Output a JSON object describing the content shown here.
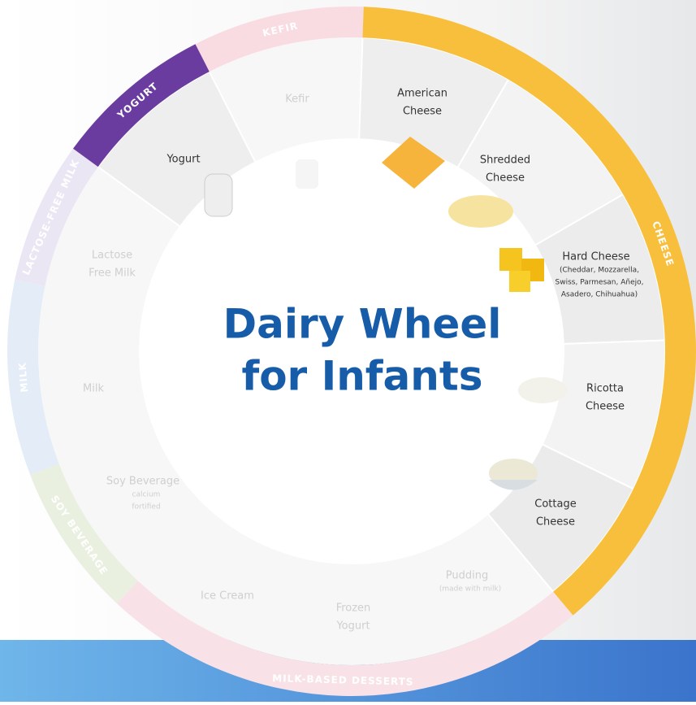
{
  "title": [
    "Dairy Wheel",
    "for Infants"
  ],
  "ring": [
    {
      "label": "KEFIR",
      "color": "#f9dbe2"
    },
    {
      "label": "CHEESE",
      "color": "#f7bf3c"
    },
    {
      "label": "MILK-BASED DESSERTS",
      "color": "#f8e2e7"
    },
    {
      "label": "SOY BEVERAGE",
      "color": "#e9f0e0"
    },
    {
      "label": "MILK",
      "color": "#e4ecf7"
    },
    {
      "label": "LACTOSE-FREE MILK",
      "color": "#ebe6f4"
    },
    {
      "label": "YOGURT",
      "color": "#6b3c9f"
    }
  ],
  "items": [
    {
      "lines": [
        "Kefir"
      ]
    },
    {
      "lines": [
        "American",
        "Cheese"
      ]
    },
    {
      "lines": [
        "Shredded",
        "Cheese"
      ]
    },
    {
      "lines": [
        "Hard Cheese"
      ],
      "note": [
        "(Cheddar, Mozzarella,",
        "Swiss, Parmesan, Añejo,",
        "Asadero, Chihuahua)"
      ]
    },
    {
      "lines": [
        "Ricotta",
        "Cheese"
      ]
    },
    {
      "lines": [
        "Cottage",
        "Cheese"
      ]
    },
    {
      "lines": [
        "Pudding"
      ],
      "note": [
        "(made with milk)"
      ]
    },
    {
      "lines": [
        "Frozen",
        "Yogurt"
      ]
    },
    {
      "lines": [
        "Ice Cream"
      ]
    },
    {
      "lines": [
        "Soy Beverage"
      ],
      "note": [
        "calcium",
        "fortified"
      ]
    },
    {
      "lines": [
        "Milk"
      ]
    },
    {
      "lines": [
        "Lactose",
        "Free Milk"
      ]
    },
    {
      "lines": [
        "Yogurt"
      ]
    }
  ]
}
